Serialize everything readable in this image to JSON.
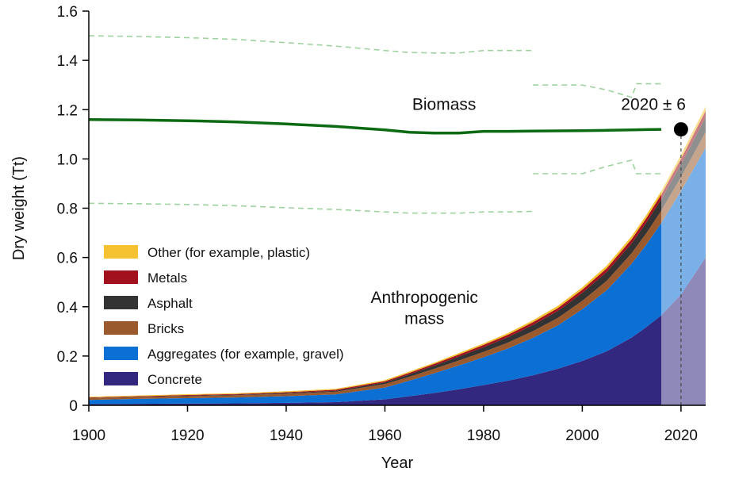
{
  "chart_data": {
    "type": "area",
    "xlabel": "Year",
    "ylabel": "Dry weight (Tt)",
    "xlim": [
      1900,
      2025
    ],
    "ylim": [
      0,
      1.6
    ],
    "xticks": [
      1900,
      1920,
      1940,
      1960,
      1980,
      2000,
      2020
    ],
    "yticks": [
      0,
      0.2,
      0.4,
      0.6,
      0.8,
      1.0,
      1.2,
      1.4,
      1.6
    ],
    "ytick_labels": [
      "0",
      "0.2",
      "0.4",
      "0.6",
      "0.8",
      "1.0",
      "1.2",
      "1.4",
      "1.6"
    ],
    "grid": false,
    "legend_position": "left",
    "x": [
      1900,
      1910,
      1920,
      1930,
      1940,
      1950,
      1960,
      1965,
      1970,
      1975,
      1980,
      1985,
      1990,
      1995,
      2000,
      2005,
      2010,
      2013,
      2016,
      2020,
      2025
    ],
    "stack_series": [
      {
        "name": "Concrete",
        "color": "#322880",
        "values": [
          0.005,
          0.006,
          0.007,
          0.008,
          0.01,
          0.013,
          0.024,
          0.037,
          0.05,
          0.065,
          0.082,
          0.1,
          0.122,
          0.148,
          0.18,
          0.22,
          0.275,
          0.318,
          0.365,
          0.45,
          0.6
        ]
      },
      {
        "name": "Aggregates (for example, gravel)",
        "color": "#0b6fd4",
        "values": [
          0.017,
          0.02,
          0.022,
          0.024,
          0.027,
          0.031,
          0.048,
          0.063,
          0.08,
          0.097,
          0.113,
          0.131,
          0.152,
          0.176,
          0.21,
          0.248,
          0.3,
          0.335,
          0.375,
          0.42,
          0.445
        ]
      },
      {
        "name": "Bricks",
        "color": "#9a5a2e",
        "values": [
          0.007,
          0.008,
          0.008,
          0.009,
          0.01,
          0.011,
          0.014,
          0.016,
          0.018,
          0.02,
          0.022,
          0.024,
          0.027,
          0.03,
          0.034,
          0.038,
          0.042,
          0.046,
          0.05,
          0.057,
          0.065
        ]
      },
      {
        "name": "Asphalt",
        "color": "#333333",
        "values": [
          0.001,
          0.001,
          0.002,
          0.002,
          0.003,
          0.004,
          0.007,
          0.01,
          0.013,
          0.016,
          0.019,
          0.022,
          0.025,
          0.028,
          0.032,
          0.036,
          0.04,
          0.043,
          0.046,
          0.052,
          0.06
        ]
      },
      {
        "name": "Metals",
        "color": "#a1121e",
        "values": [
          0.002,
          0.002,
          0.003,
          0.003,
          0.003,
          0.004,
          0.005,
          0.006,
          0.007,
          0.008,
          0.009,
          0.01,
          0.011,
          0.012,
          0.013,
          0.015,
          0.017,
          0.018,
          0.019,
          0.021,
          0.025
        ]
      },
      {
        "name": "Other (for example, plastic)",
        "color": "#f6c232",
        "values": [
          0.003,
          0.003,
          0.003,
          0.003,
          0.004,
          0.004,
          0.004,
          0.005,
          0.005,
          0.006,
          0.006,
          0.007,
          0.008,
          0.009,
          0.01,
          0.011,
          0.012,
          0.013,
          0.014,
          0.016,
          0.018
        ]
      }
    ],
    "legend_order": [
      "Other (for example, plastic)",
      "Metals",
      "Asphalt",
      "Bricks",
      "Aggregates (for example, gravel)",
      "Concrete"
    ],
    "projection_start_year": 2016,
    "biomass": {
      "color": "#0c6b12",
      "x": [
        1900,
        1910,
        1920,
        1930,
        1940,
        1950,
        1960,
        1965,
        1970,
        1975,
        1980,
        1985,
        1990,
        1995,
        2000,
        2005,
        2010,
        2013,
        2016
      ],
      "values": [
        1.16,
        1.158,
        1.155,
        1.15,
        1.142,
        1.132,
        1.118,
        1.108,
        1.105,
        1.105,
        1.112,
        1.112,
        1.113,
        1.114,
        1.115,
        1.116,
        1.118,
        1.119,
        1.12
      ],
      "upper_bound": {
        "x": [
          1900,
          1910,
          1920,
          1930,
          1940,
          1950,
          1960,
          1965,
          1970,
          1975,
          1980,
          1985,
          1990
        ],
        "values": [
          1.5,
          1.497,
          1.492,
          1.485,
          1.472,
          1.458,
          1.44,
          1.432,
          1.43,
          1.43,
          1.44,
          1.44,
          1.44
        ]
      },
      "lower_bound": {
        "x": [
          1900,
          1910,
          1920,
          1930,
          1940,
          1950,
          1960,
          1965,
          1970,
          1975,
          1980,
          1985,
          1990
        ],
        "values": [
          0.82,
          0.818,
          0.815,
          0.81,
          0.802,
          0.795,
          0.785,
          0.78,
          0.78,
          0.78,
          0.785,
          0.785,
          0.787
        ]
      },
      "upper_bound_recent": {
        "x": [
          1990,
          2000,
          2005,
          2010,
          2011,
          2016
        ],
        "values": [
          1.3,
          1.3,
          1.28,
          1.25,
          1.305,
          1.305
        ]
      },
      "lower_bound_recent": {
        "x": [
          1990,
          2000,
          2005,
          2010,
          2011,
          2016
        ],
        "values": [
          0.94,
          0.94,
          0.97,
          0.995,
          0.94,
          0.94
        ]
      }
    },
    "crossover": {
      "x": 2020,
      "y": 1.12,
      "label": "2020 ± 6"
    },
    "annotations": {
      "biomass_label": "Biomass",
      "anthropogenic_line1": "Anthropogenic",
      "anthropogenic_line2": "mass"
    }
  }
}
